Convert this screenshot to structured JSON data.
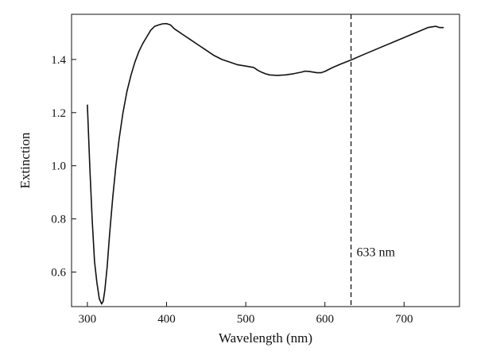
{
  "chart_data": {
    "type": "line",
    "title": "",
    "xlabel": "Wavelength (nm)",
    "ylabel": "Extinction",
    "xlim": [
      280,
      770
    ],
    "ylim": [
      0.47,
      1.57
    ],
    "xticks": [
      300,
      400,
      500,
      600,
      700
    ],
    "yticks": [
      0.6,
      0.8,
      1.0,
      1.2,
      1.4
    ],
    "xtick_labels": [
      "300",
      "400",
      "500",
      "600",
      "700"
    ],
    "ytick_labels": [
      "0.6",
      "0.8",
      "1.0",
      "1.2",
      "1.4"
    ],
    "grid": false,
    "series": [
      {
        "x": [
          300,
          303,
          306,
          309,
          312,
          315,
          318,
          320,
          322,
          325,
          328,
          332,
          336,
          340,
          345,
          350,
          355,
          360,
          365,
          370,
          375,
          380,
          385,
          390,
          395,
          400,
          405,
          410,
          415,
          420,
          430,
          440,
          450,
          460,
          470,
          480,
          490,
          500,
          510,
          515,
          520,
          525,
          530,
          540,
          550,
          560,
          570,
          575,
          580,
          590,
          595,
          600,
          610,
          620,
          633,
          650,
          670,
          690,
          710,
          730,
          740,
          745,
          750
        ],
        "y": [
          1.23,
          1.0,
          0.8,
          0.64,
          0.56,
          0.5,
          0.48,
          0.49,
          0.53,
          0.62,
          0.74,
          0.88,
          1.0,
          1.1,
          1.2,
          1.28,
          1.34,
          1.39,
          1.43,
          1.46,
          1.485,
          1.51,
          1.525,
          1.53,
          1.534,
          1.535,
          1.53,
          1.515,
          1.505,
          1.495,
          1.475,
          1.455,
          1.435,
          1.415,
          1.4,
          1.39,
          1.38,
          1.375,
          1.37,
          1.36,
          1.352,
          1.346,
          1.342,
          1.34,
          1.342,
          1.346,
          1.352,
          1.356,
          1.355,
          1.35,
          1.35,
          1.355,
          1.37,
          1.383,
          1.398,
          1.42,
          1.445,
          1.47,
          1.495,
          1.52,
          1.525,
          1.52,
          1.52
        ]
      }
    ],
    "annotations": [
      {
        "x": 633,
        "style": "dashed-vertical-line",
        "text": "633 nm"
      }
    ]
  }
}
